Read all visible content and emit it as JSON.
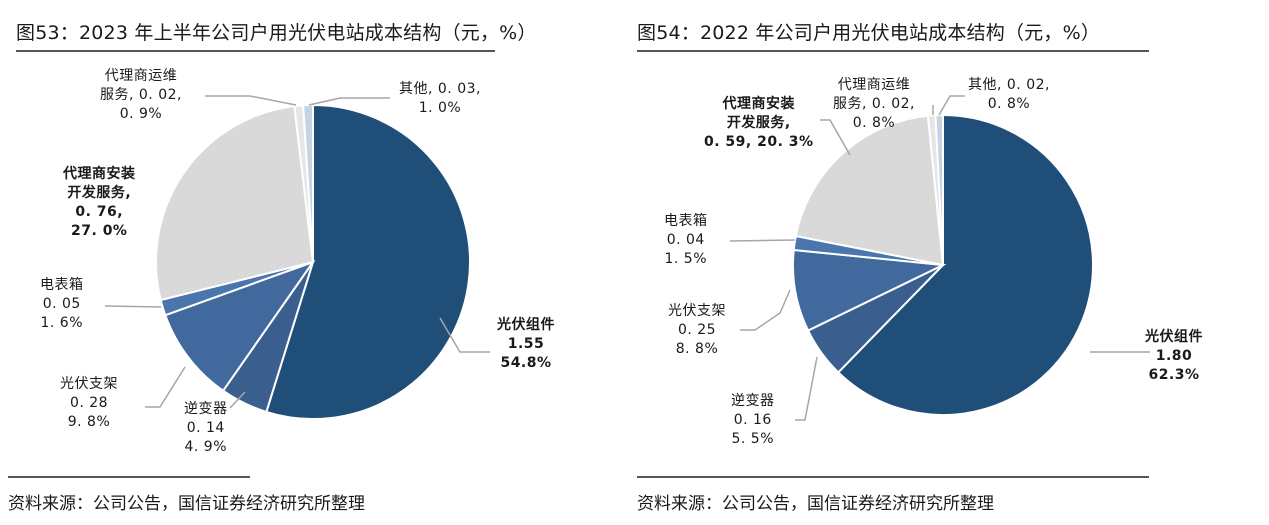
{
  "chart_data": [
    {
      "type": "pie",
      "title": "图53：2023 年上半年公司户用光伏电站成本结构（元，%）",
      "source": "资料来源：公司公告，国信证券经济研究所整理",
      "unit": "元, %",
      "slices": [
        {
          "name": "光伏组件",
          "value": 1.55,
          "percent": 54.8,
          "value_label": "1.55",
          "percent_label": "54.8%",
          "color": "#1f4e79"
        },
        {
          "name": "逆变器",
          "value": 0.14,
          "percent": 4.9,
          "value_label": "0.14",
          "percent_label": "4.9%",
          "color": "#3a5f8f"
        },
        {
          "name": "光伏支架",
          "value": 0.28,
          "percent": 9.8,
          "value_label": "0.28",
          "percent_label": "9.8%",
          "color": "#41699e"
        },
        {
          "name": "电表箱",
          "value": 0.05,
          "percent": 1.6,
          "value_label": "0.05",
          "percent_label": "1.6%",
          "color": "#4a76ad"
        },
        {
          "name": "代理商安装开发服务",
          "value": 0.76,
          "percent": 27.0,
          "value_label": "0.76",
          "percent_label": "27.0%",
          "color": "#d9d9d9"
        },
        {
          "name": "代理商运维服务",
          "value": 0.02,
          "percent": 0.9,
          "value_label": "0.02",
          "percent_label": "0.9%",
          "color": "#e6e6e6"
        },
        {
          "name": "其他",
          "value": 0.03,
          "percent": 1.0,
          "value_label": "0.03",
          "percent_label": "1.0%",
          "color": "#c5d3e6"
        }
      ],
      "labels": {
        "modules": [
          "光伏组件",
          "1.55",
          "54.8%"
        ],
        "inverter": [
          "逆变器",
          "0. 14",
          "4. 9%"
        ],
        "bracket": [
          "光伏支架",
          "0. 28",
          "9. 8%"
        ],
        "meter": [
          "电表箱",
          "0. 05",
          "1. 6%"
        ],
        "install": [
          "代理商安装",
          "开发服务,",
          "0. 76,",
          "27. 0%"
        ],
        "om": [
          "代理商运维",
          "服务, 0. 02,",
          "0. 9%"
        ],
        "other": [
          "其他, 0. 03,",
          "1. 0%"
        ]
      }
    },
    {
      "type": "pie",
      "title": "图54：2022 年公司户用光伏电站成本结构（元，%）",
      "source": "资料来源：公司公告，国信证券经济研究所整理",
      "unit": "元, %",
      "slices": [
        {
          "name": "光伏组件",
          "value": 1.8,
          "percent": 62.3,
          "value_label": "1.80",
          "percent_label": "62.3%",
          "color": "#1f4e79"
        },
        {
          "name": "逆变器",
          "value": 0.16,
          "percent": 5.5,
          "value_label": "0.16",
          "percent_label": "5.5%",
          "color": "#3a5f8f"
        },
        {
          "name": "光伏支架",
          "value": 0.25,
          "percent": 8.8,
          "value_label": "0.25",
          "percent_label": "8.8%",
          "color": "#41699e"
        },
        {
          "name": "电表箱",
          "value": 0.04,
          "percent": 1.5,
          "value_label": "0.04",
          "percent_label": "1.5%",
          "color": "#4a76ad"
        },
        {
          "name": "代理商安装开发服务",
          "value": 0.59,
          "percent": 20.3,
          "value_label": "0.59",
          "percent_label": "20.3%",
          "color": "#d9d9d9"
        },
        {
          "name": "代理商运维服务",
          "value": 0.02,
          "percent": 0.8,
          "value_label": "0.02",
          "percent_label": "0.8%",
          "color": "#e6e6e6"
        },
        {
          "name": "其他",
          "value": 0.02,
          "percent": 0.8,
          "value_label": "0.02",
          "percent_label": "0.8%",
          "color": "#c5d3e6"
        }
      ],
      "labels": {
        "modules": [
          "光伏组件",
          "1.80",
          "62.3%"
        ],
        "inverter": [
          "逆变器",
          "0. 16",
          "5. 5%"
        ],
        "bracket": [
          "光伏支架",
          "0. 25",
          "8. 8%"
        ],
        "meter": [
          "电表箱",
          "0. 04",
          "1. 5%"
        ],
        "install": [
          "代理商安装",
          "开发服务,",
          "0. 59, 20. 3%"
        ],
        "om": [
          "代理商运维",
          "服务, 0. 02,",
          "0. 8%"
        ],
        "other": [
          "其他, 0. 02,",
          "0. 8%"
        ]
      }
    }
  ]
}
